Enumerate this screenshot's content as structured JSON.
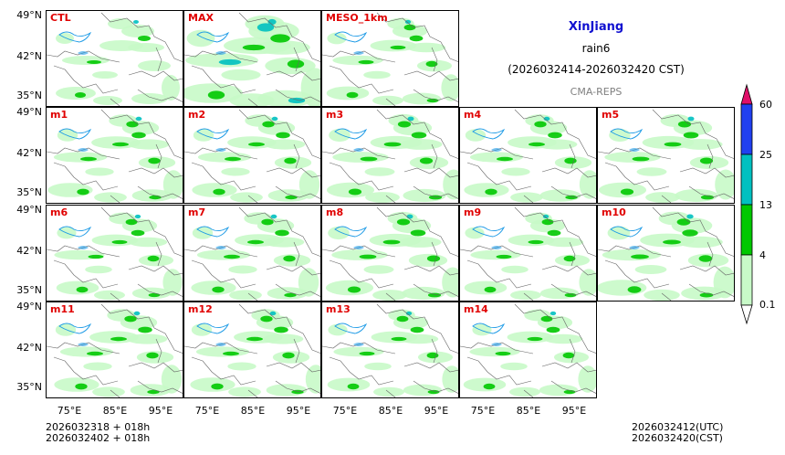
{
  "info": {
    "region": "XinJiang",
    "variable": "rain6",
    "period": "(2026032414-2026032420 CST)",
    "system": "CMA-REPS"
  },
  "panels": [
    {
      "label": "CTL",
      "intensity": 0.8
    },
    {
      "label": "MAX",
      "intensity": 1.7
    },
    {
      "label": "MESO_1km",
      "intensity": 0.9
    },
    {
      "label": "m1",
      "intensity": 1.0
    },
    {
      "label": "m2",
      "intensity": 1.0
    },
    {
      "label": "m3",
      "intensity": 1.1
    },
    {
      "label": "m4",
      "intensity": 1.0
    },
    {
      "label": "m5",
      "intensity": 1.1
    },
    {
      "label": "m6",
      "intensity": 0.9
    },
    {
      "label": "m7",
      "intensity": 1.0
    },
    {
      "label": "m8",
      "intensity": 1.1
    },
    {
      "label": "m9",
      "intensity": 0.9
    },
    {
      "label": "m10",
      "intensity": 1.2
    },
    {
      "label": "m11",
      "intensity": 1.0
    },
    {
      "label": "m12",
      "intensity": 1.0
    },
    {
      "label": "m13",
      "intensity": 0.9
    },
    {
      "label": "m14",
      "intensity": 0.9
    }
  ],
  "axes": {
    "lat_ticks": [
      "49°N",
      "42°N",
      "35°N"
    ],
    "lon_ticks": [
      "75°E",
      "85°E",
      "95°E"
    ]
  },
  "colorbar": {
    "levels": [
      "0.1",
      "4",
      "13",
      "25",
      "60"
    ],
    "colors": [
      "#c8fac8",
      "#00c800",
      "#00c0c0",
      "#2040f0",
      "#e0106a"
    ]
  },
  "footer": {
    "init_line1": "2026032318  +  018h",
    "init_line2": "2026032402  +  018h",
    "valid_utc": "2026032412(UTC)",
    "valid_cst": "2026032420(CST)"
  },
  "colors": {
    "label": "#e00000",
    "region_title": "#1010d0",
    "system": "#808080",
    "border": "#666666",
    "water": "#1e9be6"
  }
}
